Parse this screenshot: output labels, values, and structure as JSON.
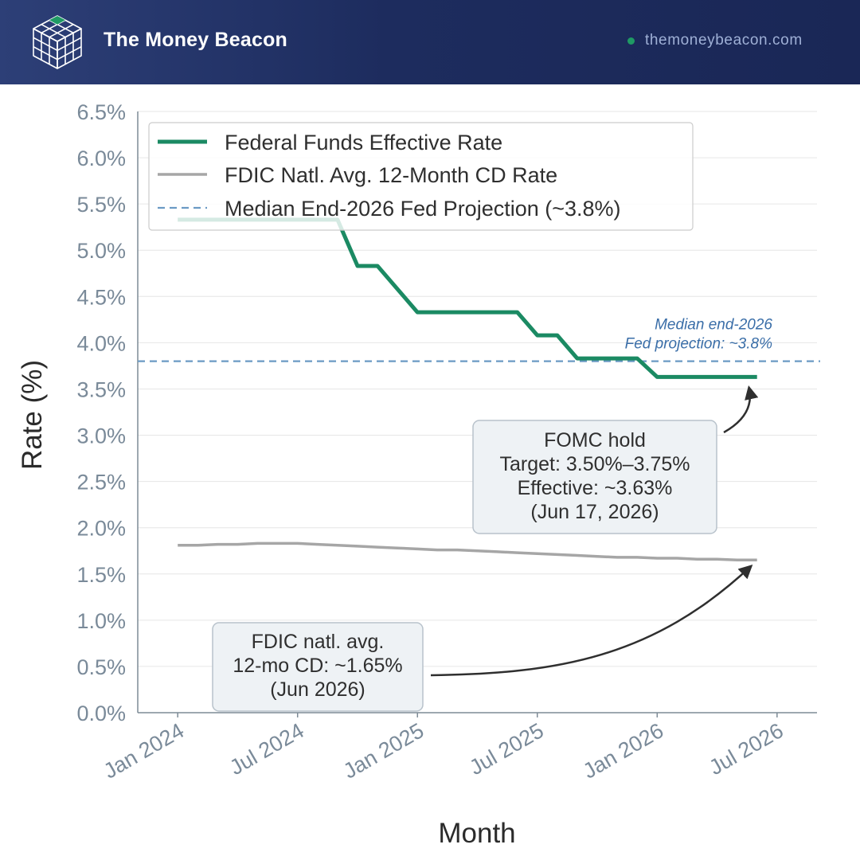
{
  "brand": {
    "name": "The Money Beacon",
    "site": "themoneybeacon.com",
    "logo_icon": "cube-grid-icon"
  },
  "colors": {
    "header_bg": "#1f2d5f",
    "fed": "#1b8a63",
    "cd": "#a6a6a6",
    "projection": "#6b9ac4",
    "status_dot": "#1f9a64"
  },
  "chart_data": {
    "type": "line",
    "xlabel": "Month",
    "ylabel": "Rate (%)",
    "ylim": [
      0,
      6.5
    ],
    "yticks": [
      0,
      0.5,
      1.0,
      1.5,
      2.0,
      2.5,
      3.0,
      3.5,
      4.0,
      4.5,
      5.0,
      5.5,
      6.0,
      6.5
    ],
    "ytick_labels": [
      "0.0%",
      "0.5%",
      "1.0%",
      "1.5%",
      "2.0%",
      "2.5%",
      "3.0%",
      "3.5%",
      "4.0%",
      "4.5%",
      "5.0%",
      "5.5%",
      "6.0%",
      "6.5%"
    ],
    "xticks": [
      "2024-01",
      "2024-07",
      "2025-01",
      "2025-07",
      "2026-01",
      "2026-07"
    ],
    "xtick_labels": [
      "Jan 2024",
      "Jul 2024",
      "Jan 2025",
      "Jul 2025",
      "Jan 2026",
      "Jul 2026"
    ],
    "x_range": [
      "2023-11",
      "2026-09"
    ],
    "grid": true,
    "legend_position": "top-left",
    "series": [
      {
        "name": "Federal Funds Effective Rate",
        "color": "#1b8a63",
        "style": "solid",
        "x": [
          "2024-01",
          "2024-02",
          "2024-03",
          "2024-04",
          "2024-05",
          "2024-06",
          "2024-07",
          "2024-08",
          "2024-09",
          "2024-10",
          "2024-11",
          "2024-12",
          "2025-01",
          "2025-02",
          "2025-03",
          "2025-04",
          "2025-05",
          "2025-06",
          "2025-07",
          "2025-08",
          "2025-09",
          "2025-10",
          "2025-11",
          "2025-12",
          "2026-01",
          "2026-02",
          "2026-03",
          "2026-04",
          "2026-05",
          "2026-06"
        ],
        "values": [
          5.33,
          5.33,
          5.33,
          5.33,
          5.33,
          5.33,
          5.33,
          5.33,
          5.33,
          4.83,
          4.83,
          4.58,
          4.33,
          4.33,
          4.33,
          4.33,
          4.33,
          4.33,
          4.08,
          4.08,
          3.83,
          3.83,
          3.83,
          3.83,
          3.63,
          3.63,
          3.63,
          3.63,
          3.63,
          3.63
        ]
      },
      {
        "name": "FDIC Natl. Avg. 12-Month CD Rate",
        "color": "#a6a6a6",
        "style": "solid",
        "x": [
          "2024-01",
          "2024-02",
          "2024-03",
          "2024-04",
          "2024-05",
          "2024-06",
          "2024-07",
          "2024-08",
          "2024-09",
          "2024-10",
          "2024-11",
          "2024-12",
          "2025-01",
          "2025-02",
          "2025-03",
          "2025-04",
          "2025-05",
          "2025-06",
          "2025-07",
          "2025-08",
          "2025-09",
          "2025-10",
          "2025-11",
          "2025-12",
          "2026-01",
          "2026-02",
          "2026-03",
          "2026-04",
          "2026-05",
          "2026-06"
        ],
        "values": [
          1.81,
          1.81,
          1.82,
          1.82,
          1.83,
          1.83,
          1.83,
          1.82,
          1.81,
          1.8,
          1.79,
          1.78,
          1.77,
          1.76,
          1.76,
          1.75,
          1.74,
          1.73,
          1.72,
          1.71,
          1.7,
          1.69,
          1.68,
          1.68,
          1.67,
          1.67,
          1.66,
          1.66,
          1.65,
          1.65
        ]
      },
      {
        "name": "Median End-2026 Fed Projection (~3.8%)",
        "color": "#6b9ac4",
        "style": "dashed",
        "value": 3.8
      }
    ],
    "annotations": [
      {
        "lines": [
          "Median end-2026",
          "Fed projection: ~3.8%"
        ],
        "style": "label"
      },
      {
        "lines": [
          "FOMC hold",
          "Target: 3.50%–3.75%",
          "Effective: ~3.63%",
          "(Jun 17, 2026)"
        ],
        "points_to": {
          "x": "2026-06",
          "y": 3.63
        }
      },
      {
        "lines": [
          "FDIC natl. avg.",
          "12-mo CD: ~1.65%",
          "(Jun 2026)"
        ],
        "points_to": {
          "x": "2026-06",
          "y": 1.65
        }
      }
    ]
  }
}
